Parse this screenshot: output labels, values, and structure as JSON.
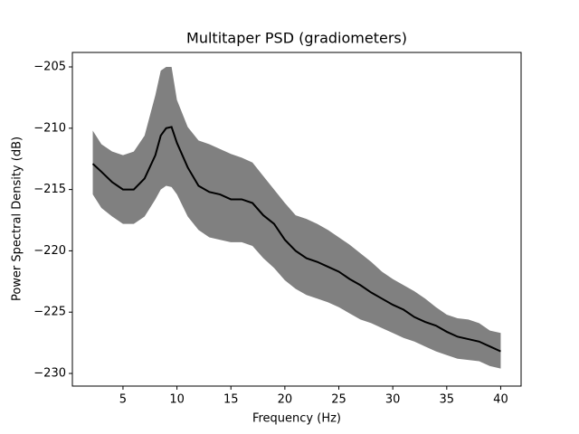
{
  "chart_data": {
    "type": "line",
    "title": "Multitaper PSD (gradiometers)",
    "x_label": "Frequency (Hz)",
    "y_label": "Power Spectral Density (dB)",
    "x": [
      2.2,
      3,
      4,
      5,
      6,
      7,
      8,
      8.5,
      9,
      9.5,
      10,
      11,
      12,
      13,
      14,
      15,
      16,
      17,
      18,
      19,
      20,
      21,
      22,
      23,
      24,
      25,
      26,
      27,
      28,
      29,
      30,
      31,
      32,
      33,
      34,
      35,
      36,
      37,
      38,
      39,
      40
    ],
    "values": [
      -212.9,
      -213.55,
      -214.4,
      -215.0,
      -215.0,
      -214.1,
      -212.2,
      -210.6,
      -210.0,
      -209.9,
      -211.2,
      -213.2,
      -214.7,
      -215.2,
      -215.4,
      -215.8,
      -215.8,
      -216.1,
      -217.1,
      -217.8,
      -219.1,
      -220.0,
      -220.6,
      -220.9,
      -221.3,
      -221.7,
      -222.3,
      -222.8,
      -223.4,
      -223.9,
      -224.4,
      -224.8,
      -225.4,
      -225.8,
      -226.1,
      -226.6,
      -227.0,
      -227.2,
      -227.4,
      -227.8,
      -228.2
    ],
    "upper": [
      -210.2,
      -211.3,
      -211.9,
      -212.2,
      -211.9,
      -210.6,
      -207.3,
      -205.3,
      -205.0,
      -205.0,
      -207.7,
      -209.9,
      -211.0,
      -211.3,
      -211.7,
      -212.1,
      -212.4,
      -212.8,
      -213.9,
      -215.0,
      -216.1,
      -217.1,
      -217.4,
      -217.8,
      -218.3,
      -218.9,
      -219.5,
      -220.2,
      -220.9,
      -221.7,
      -222.3,
      -222.8,
      -223.3,
      -223.9,
      -224.6,
      -225.2,
      -225.5,
      -225.6,
      -225.9,
      -226.5,
      -226.7
    ],
    "lower": [
      -215.4,
      -216.5,
      -217.2,
      -217.8,
      -217.8,
      -217.2,
      -215.8,
      -215.0,
      -214.7,
      -214.8,
      -215.4,
      -217.2,
      -218.3,
      -218.9,
      -219.1,
      -219.3,
      -219.3,
      -219.6,
      -220.6,
      -221.4,
      -222.4,
      -223.1,
      -223.6,
      -223.9,
      -224.2,
      -224.6,
      -225.1,
      -225.6,
      -225.9,
      -226.3,
      -226.7,
      -227.1,
      -227.4,
      -227.8,
      -228.2,
      -228.5,
      -228.8,
      -228.9,
      -229.0,
      -229.4,
      -229.6
    ],
    "color": "#000000",
    "band_color": "#808080",
    "xlim": [
      0.31,
      41.89
    ],
    "xticks": [
      5,
      10,
      15,
      20,
      25,
      30,
      35,
      40
    ],
    "ylim": [
      -231.03,
      -203.82
    ],
    "yticks": [
      {
        "value": -230,
        "label": "−230"
      },
      {
        "value": -225,
        "label": "−225"
      },
      {
        "value": -220,
        "label": "−220"
      },
      {
        "value": -215,
        "label": "−215"
      },
      {
        "value": -210,
        "label": "−210"
      },
      {
        "value": -205,
        "label": "−205"
      }
    ],
    "grid": false
  }
}
